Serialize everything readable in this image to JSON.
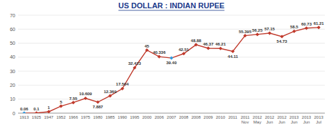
{
  "chart_data": {
    "type": "line",
    "title": "US DOLLAR : INDIAN RUPEE",
    "categories": [
      "1913",
      "1925",
      "1947",
      "1952",
      "1966",
      "1975",
      "1980",
      "1985",
      "1990",
      "1995",
      "2000",
      "2006",
      "2007",
      "2008",
      "2008",
      "2009",
      "2010",
      "2011",
      "2011\nNov",
      "2012\nMay",
      "2012\nJun",
      "2012\nJun",
      "2013\nJun",
      "2013\nJun",
      "2013\nJul"
    ],
    "values": [
      0.06,
      0.1,
      1,
      5,
      7.55,
      10.609,
      7.887,
      12.369,
      17.504,
      32.423,
      45,
      40.336,
      39.4,
      42.51,
      48.88,
      46.37,
      46.21,
      44.11,
      55.395,
      56.25,
      57.15,
      54.73,
      58.5,
      60.73,
      61.21
    ],
    "value_labels": [
      "0.06",
      "0.1",
      "1",
      "5",
      "7.55",
      "10.609",
      "7.887",
      "12.369",
      "17.504",
      "32.423",
      "45",
      "40.336",
      "39.40",
      "42.51",
      "48.88",
      "46.37",
      "46.21",
      "44.11",
      "55.395",
      "56.25",
      "57.15",
      "54.73",
      "58.5",
      "60.73",
      "61.21"
    ],
    "data_labels": true,
    "color": "#c0392b",
    "colors": [
      "#3498db",
      "#c0392b",
      "#c0392b",
      "#c0392b",
      "#c0392b",
      "#c0392b",
      "#c0392b",
      "#c0392b",
      "#c0392b",
      "#c0392b",
      "#c0392b",
      "#c0392b",
      "#3498db",
      "#c0392b",
      "#c0392b",
      "#c0392b",
      "#c0392b",
      "#c0392b",
      "#c0392b",
      "#c0392b",
      "#c0392b",
      "#c0392b",
      "#c0392b",
      "#c0392b",
      "#c0392b"
    ],
    "marker": "diamond",
    "ylim": [
      0,
      70
    ],
    "yticks": [
      0,
      10,
      20,
      30,
      40,
      50,
      60,
      70
    ],
    "grid": true
  }
}
